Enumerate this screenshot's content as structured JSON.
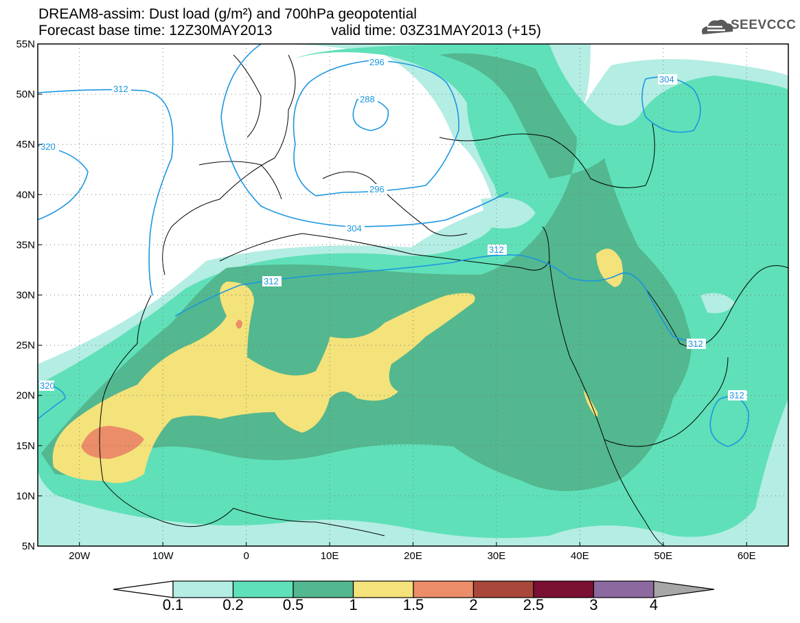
{
  "header": {
    "title": "DREAM8-assim: Dust load (g/m²) and 700hPa geopotential",
    "base_time": "Forecast base time: 12Z30MAY2013",
    "valid_time": "valid time: 03Z31MAY2013 (+15)",
    "logo_text": "SEEVCCC"
  },
  "map": {
    "lon_ticks": [
      {
        "value": -20,
        "label": "20W"
      },
      {
        "value": -10,
        "label": "10W"
      },
      {
        "value": 0,
        "label": "0"
      },
      {
        "value": 10,
        "label": "10E"
      },
      {
        "value": 20,
        "label": "20E"
      },
      {
        "value": 30,
        "label": "30E"
      },
      {
        "value": 40,
        "label": "40E"
      },
      {
        "value": 50,
        "label": "50E"
      },
      {
        "value": 60,
        "label": "60E"
      }
    ],
    "lat_ticks": [
      {
        "value": 55,
        "label": "55N"
      },
      {
        "value": 50,
        "label": "50N"
      },
      {
        "value": 45,
        "label": "45N"
      },
      {
        "value": 40,
        "label": "40N"
      },
      {
        "value": 35,
        "label": "35N"
      },
      {
        "value": 30,
        "label": "30N"
      },
      {
        "value": 25,
        "label": "25N"
      },
      {
        "value": 20,
        "label": "20N"
      },
      {
        "value": 15,
        "label": "15N"
      },
      {
        "value": 10,
        "label": "10N"
      },
      {
        "value": 5,
        "label": "5N"
      }
    ],
    "geopotential_labels": [
      "312",
      "320",
      "296",
      "288",
      "296",
      "304",
      "312",
      "312",
      "304",
      "312",
      "312",
      "320"
    ]
  },
  "colorbar": {
    "colors": [
      "#b4ede3",
      "#5fe0b8",
      "#53b78f",
      "#f4e27a",
      "#eb8d69",
      "#a8473a",
      "#7a1032",
      "#8c6aa0",
      "#a7a7a7"
    ],
    "labels": [
      "0.1",
      "0.2",
      "0.5",
      "1",
      "1.5",
      "2",
      "2.5",
      "3",
      "4"
    ]
  }
}
